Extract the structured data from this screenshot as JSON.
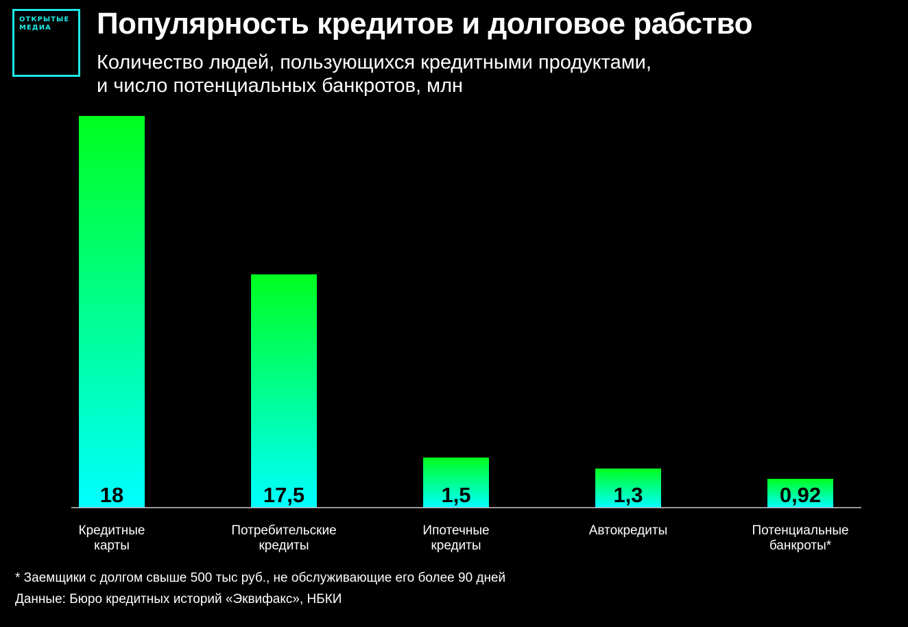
{
  "logo": {
    "line1": "ОТКРЫТЫЕ",
    "line2": "МЕДИА"
  },
  "header": {
    "title": "Популярность кредитов и долговое рабство",
    "subtitle_line1": "Количество людей, пользующихся кредитными продуктами,",
    "subtitle_line2": "и число потенциальных банкротов, млн"
  },
  "colors": {
    "bar_top": "#00ff1e",
    "bar_bottom": "#00ffff",
    "logo": "#1de9e6",
    "baseline": "#cccccc"
  },
  "chart_data": {
    "type": "bar",
    "title": "Популярность кредитов и долговое рабство",
    "subtitle": "Количество людей, пользующихся кредитными продуктами, и число потенциальных банкротов, млн",
    "categories": [
      [
        "Кредитные",
        "карты"
      ],
      [
        "Потребительские",
        "кредиты"
      ],
      [
        "Ипотечные",
        "кредиты"
      ],
      [
        "Автокредиты"
      ],
      [
        "Потенциальные",
        "банкроты*"
      ]
    ],
    "values": [
      18,
      17.5,
      1.5,
      1.3,
      0.92
    ],
    "value_labels": [
      "18",
      "17,5",
      "1,5",
      "1,3",
      "0,92"
    ],
    "grid": false,
    "legend": "none"
  },
  "footer": {
    "footnote": "* Заемщики с долгом свыше 500 тыс руб., не обслуживающие его более 90 дней",
    "source": "Данные: Бюро кредитных историй «Эквифакс», НБКИ"
  }
}
